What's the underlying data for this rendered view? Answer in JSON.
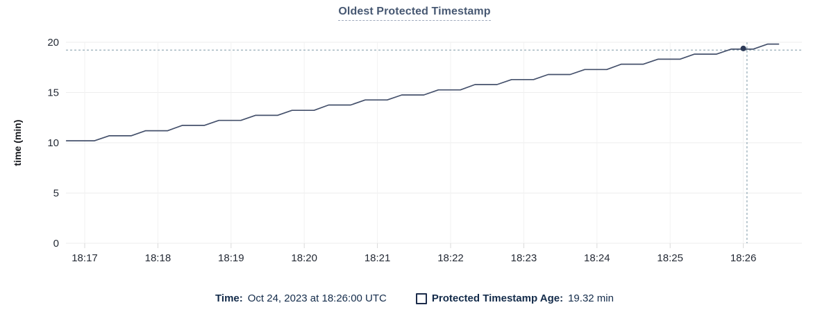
{
  "title": "Oldest Protected Timestamp",
  "colors": {
    "line": "#44506b",
    "dot": "#2c3a57",
    "grid_h": "#ededed",
    "grid_v": "#f2f2f2",
    "tick_mark": "#d9d9d9",
    "crosshair": "#a0b4be",
    "tick_text": "#242a35",
    "axis_title_text": "#16181d",
    "title_text": "#475872",
    "footer_text": "#132b4a"
  },
  "chart_data": {
    "type": "line",
    "title": "Oldest Protected Timestamp",
    "xlabel": "",
    "ylabel": "time (min)",
    "ylim": [
      0,
      20
    ],
    "yticks": [
      0,
      5,
      10,
      15,
      20
    ],
    "xtick_labels": [
      "18:17",
      "18:18",
      "18:19",
      "18:20",
      "18:21",
      "18:22",
      "18:23",
      "18:24",
      "18:25",
      "18:26"
    ],
    "xtick_offsets_sec": [
      0,
      60,
      120,
      180,
      240,
      300,
      360,
      420,
      480,
      540
    ],
    "x_range_sec": [
      -15,
      588
    ],
    "grid": true,
    "legend_position": "bottom",
    "series": [
      {
        "name": "Protected Timestamp Age",
        "unit": "min",
        "points": [
          [
            -15,
            10.2
          ],
          [
            8,
            10.2
          ],
          [
            20,
            10.7
          ],
          [
            38,
            10.7
          ],
          [
            50,
            11.2
          ],
          [
            68,
            11.2
          ],
          [
            80,
            11.73
          ],
          [
            98,
            11.73
          ],
          [
            110,
            12.23
          ],
          [
            128,
            12.23
          ],
          [
            140,
            12.73
          ],
          [
            158,
            12.73
          ],
          [
            170,
            13.23
          ],
          [
            188,
            13.23
          ],
          [
            200,
            13.76
          ],
          [
            218,
            13.76
          ],
          [
            230,
            14.26
          ],
          [
            248,
            14.26
          ],
          [
            260,
            14.76
          ],
          [
            278,
            14.76
          ],
          [
            290,
            15.26
          ],
          [
            308,
            15.26
          ],
          [
            320,
            15.79
          ],
          [
            338,
            15.79
          ],
          [
            350,
            16.29
          ],
          [
            368,
            16.29
          ],
          [
            380,
            16.79
          ],
          [
            398,
            16.79
          ],
          [
            410,
            17.29
          ],
          [
            428,
            17.29
          ],
          [
            440,
            17.82
          ],
          [
            458,
            17.82
          ],
          [
            470,
            18.32
          ],
          [
            488,
            18.32
          ],
          [
            500,
            18.82
          ],
          [
            518,
            18.82
          ],
          [
            530,
            19.32
          ],
          [
            548,
            19.32
          ],
          [
            560,
            19.82
          ],
          [
            569,
            19.82
          ]
        ]
      }
    ],
    "crosshair": {
      "point_x_sec": 540,
      "point_value": 19.32,
      "hover_x_sec": 543
    }
  },
  "footer": {
    "time_label": "Time:",
    "time_value": "Oct 24, 2023 at 18:26:00 UTC",
    "series_label": "Protected Timestamp Age:",
    "series_value": "19.32 min"
  }
}
